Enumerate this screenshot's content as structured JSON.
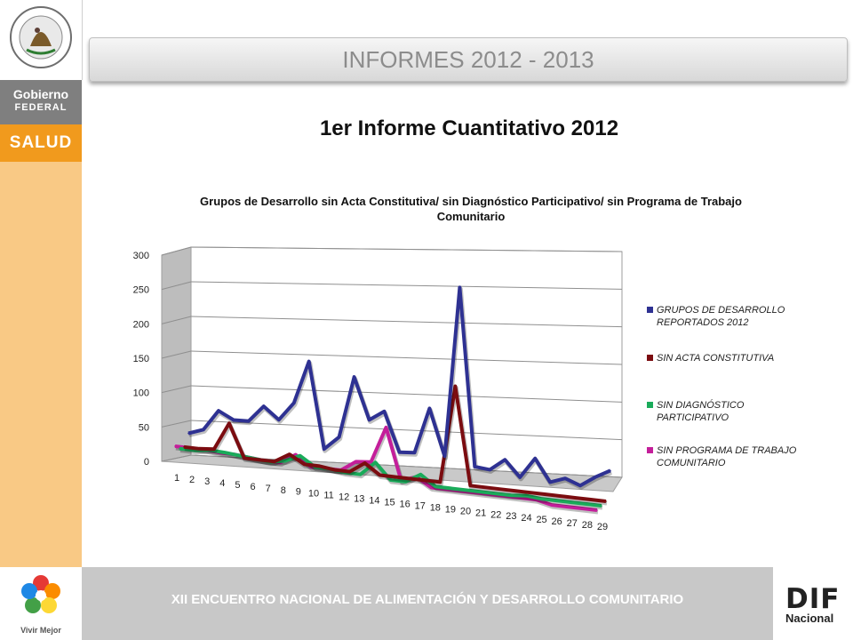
{
  "sidebar": {
    "seal_label": "ESTADOS UNIDOS MEXICANOS",
    "gobierno_line1": "Gobierno",
    "gobierno_line2": "FEDERAL",
    "salud": "SALUD",
    "vivir_label": "Vivir Mejor"
  },
  "header": {
    "title": "INFORMES 2012 - 2013"
  },
  "main_title": "1er Informe Cuantitativo 2012",
  "footer": {
    "text": "XII ENCUENTRO NACIONAL DE ALIMENTACIÓN Y DESARROLLO COMUNITARIO",
    "dif": "DIF",
    "dif_sub": "Nacional"
  },
  "chart_data": {
    "type": "line",
    "style": "3d",
    "title": "Grupos de Desarrollo sin Acta Constitutiva/ sin Diagnóstico Participativo/ sin Programa de Trabajo Comunitario",
    "xlabel": "",
    "ylabel": "",
    "ylim": [
      0,
      300
    ],
    "yticks": [
      "0",
      "50",
      "100",
      "150",
      "200",
      "250",
      "300"
    ],
    "categories": [
      "1",
      "2",
      "3",
      "4",
      "5",
      "6",
      "7",
      "8",
      "9",
      "10",
      "11",
      "12",
      "13",
      "14",
      "15",
      "16",
      "17",
      "18",
      "19",
      "20",
      "21",
      "22",
      "23",
      "24",
      "25",
      "26",
      "27",
      "28",
      "29"
    ],
    "legend_position": "right",
    "grid": true,
    "series": [
      {
        "name": "GRUPOS DE DESARROLLO REPORTADOS 2012",
        "color": "#2e3192",
        "values": [
          20,
          28,
          58,
          47,
          48,
          72,
          55,
          82,
          145,
          20,
          40,
          130,
          70,
          85,
          28,
          30,
          97,
          30,
          278,
          20,
          18,
          35,
          12,
          42,
          10,
          18,
          10,
          25,
          37
        ]
      },
      {
        "name": "SIN ACTA CONSTITUTIVA",
        "color": "#7b0c10",
        "values": [
          8,
          8,
          10,
          50,
          2,
          2,
          2,
          15,
          3,
          3,
          0,
          0,
          15,
          0,
          0,
          0,
          0,
          0,
          142,
          0,
          0,
          0,
          0,
          0,
          0,
          0,
          0,
          0,
          0
        ]
      },
      {
        "name": "SIN DIAGNÓSTICO PARTICIPATIVO",
        "color": "#1aab5a",
        "values": [
          12,
          12,
          15,
          14,
          12,
          10,
          8,
          12,
          22,
          8,
          8,
          5,
          5,
          25,
          2,
          2,
          15,
          0,
          0,
          0,
          0,
          0,
          0,
          2,
          0,
          0,
          0,
          0,
          0
        ]
      },
      {
        "name": "SIN PROGRAMA DE TRABAJO COMUNITARIO",
        "color": "#c41e9a",
        "values": [
          22,
          22,
          22,
          20,
          20,
          18,
          16,
          16,
          30,
          15,
          15,
          15,
          30,
          32,
          85,
          10,
          18,
          5,
          5,
          5,
          5,
          5,
          5,
          5,
          5,
          0,
          0,
          0,
          0
        ]
      }
    ]
  }
}
